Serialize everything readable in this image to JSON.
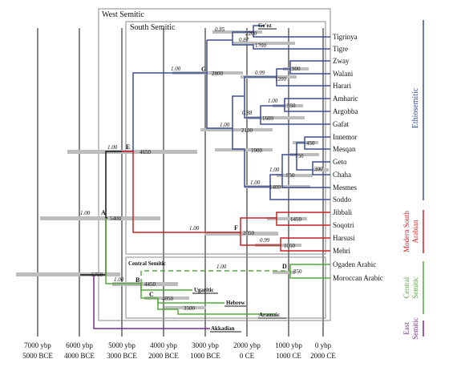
{
  "colors": {
    "ethiosemitic": "#3b4f96",
    "modern_south_arabian": "#cc2222",
    "central_semitic": "#55a83c",
    "east_semitic": "#7a2d8c",
    "interval_bar": "#bdbdbd",
    "trunk": "#111111"
  },
  "boxes": {
    "west_semitic": "West Semitic",
    "south_semitic": "South Semitic",
    "central_semitic": "Central Semitic"
  },
  "node_labels": {
    "A": "A",
    "B": "B",
    "C": "C",
    "D": "D",
    "E": "E",
    "F": "F",
    "G": "G"
  },
  "ancient_labels": {
    "geez": "Ge'ez",
    "ugaritic": "Ugaritic",
    "hebrew": "Hebrew",
    "aramaic": "Aramaic",
    "akkadian": "Akkadian"
  },
  "leaf_labels": [
    "Tigrinya",
    "Tigre",
    "Zway",
    "Walani",
    "Harari",
    "Amharic",
    "Argobba",
    "Gafat",
    "Innemor",
    "Mesqan",
    "Geto",
    "Chaha",
    "Mesmes",
    "Soddo",
    "Jibbali",
    "Soqotri",
    "Harsusi",
    "Mehri",
    "Ogaden Arabic",
    "Moroccan Arabic"
  ],
  "support_values": {
    "g": "1.00",
    "tigrinya_geez": "0.85",
    "tigrinya_tigre": "0.87",
    "walani_zway": "0.99",
    "amharic_argobba": "1.00",
    "gafat": "0.88",
    "gafat_group": "1.00",
    "chaha_group": "1.00",
    "mesmes_soddo": "1.00",
    "e": "1.00",
    "a": "1.00",
    "f": "1.00",
    "mehri_harsusi": "0.99",
    "d": "1.00",
    "b": "1.00"
  },
  "node_dates": {
    "geez": "2200",
    "tigre": "1700",
    "zway": "900",
    "walani": "1200",
    "g": "2800",
    "argobba": "950",
    "gafat": "1600",
    "gafat_group": "2100",
    "innemor": "450",
    "mesqan": "750",
    "chaha": "300",
    "geto": "950",
    "mesmes": "1400",
    "group_1900": "1900",
    "e": "4650",
    "a": "5400",
    "jibbali": "1450",
    "f": "2050",
    "mehri": "1050",
    "root": "5750",
    "b": "4450",
    "c": "4050",
    "aramaic": "3500",
    "d": "850"
  },
  "axis": {
    "ybp": [
      "7000 ybp",
      "6000 ybp",
      "5000 ybp",
      "4000 ybp",
      "3000 ybp",
      "2000 ybp",
      "1000 ybp",
      "0 ybp"
    ],
    "era": [
      "5000 BCE",
      "4000 BCE",
      "3000 BCE",
      "2000 BCE",
      "1000 BCE",
      "0 CE",
      "1000 CE",
      "2000 CE"
    ]
  },
  "group_legend": {
    "ethiosemitic": "Ethiosemitic",
    "msa_line1": "Modern South",
    "msa_line2": "Arabian",
    "central_line1": "Central",
    "central_line2": "Semitic",
    "east_line1": "East",
    "east_line2": "Semitic"
  }
}
